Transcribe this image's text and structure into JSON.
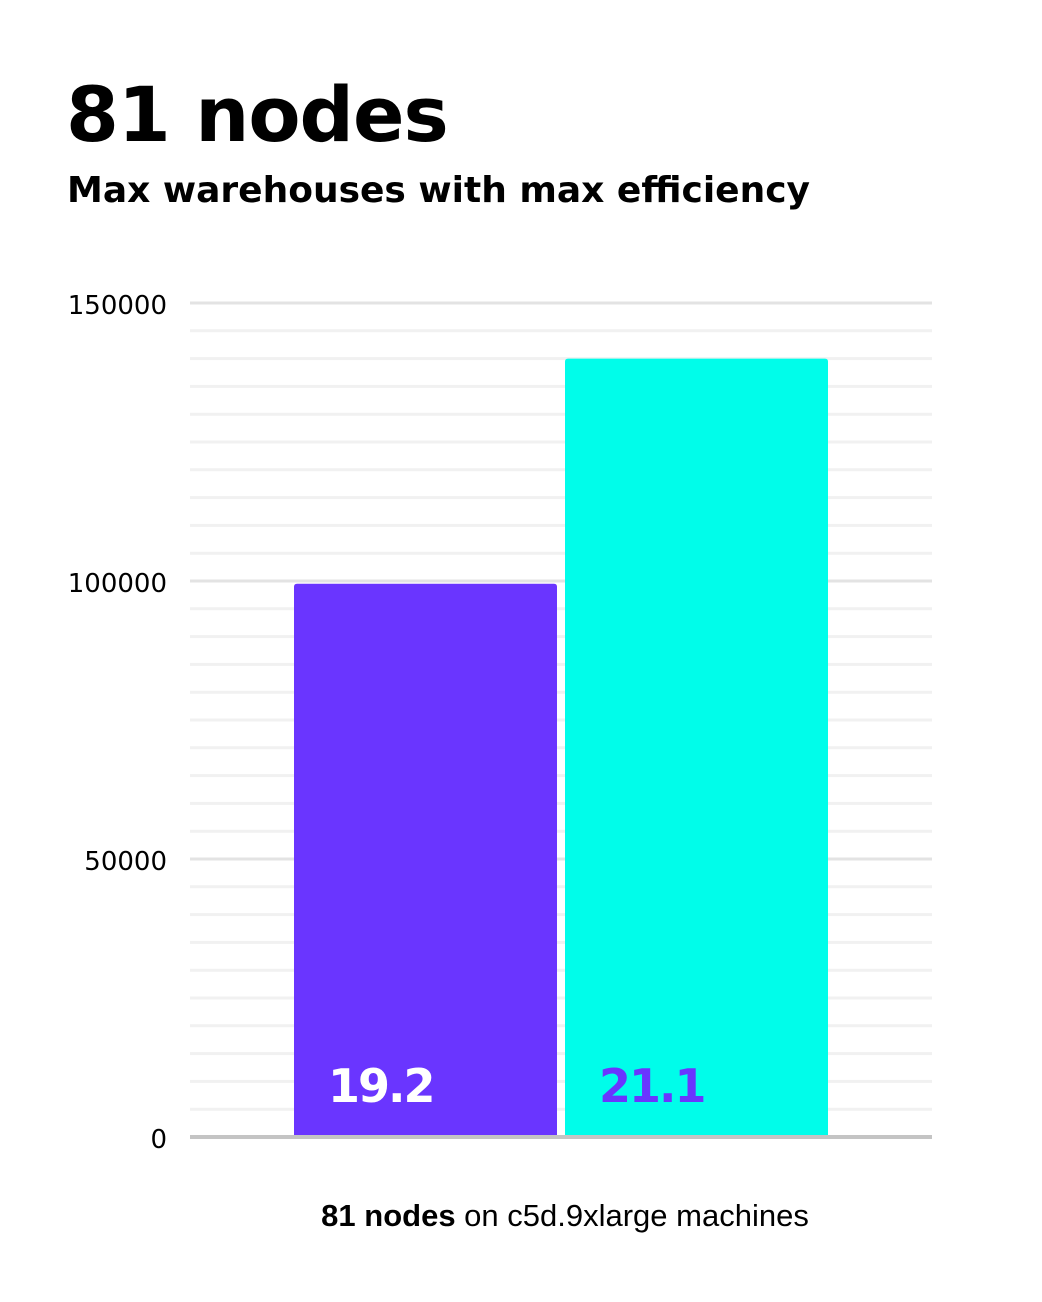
{
  "chart_data": {
    "type": "bar",
    "title": "81 nodes",
    "subtitle": "Max warehouses with max efficiency",
    "xlabel_bold": "81 nodes",
    "xlabel_rest": " on c5d.9xlarge machines",
    "ylabel": "",
    "ylim": [
      0,
      150000
    ],
    "yticks": [
      0,
      50000,
      100000,
      150000
    ],
    "minor_grid_step": 5000,
    "grid": true,
    "bars": [
      {
        "value": 99500,
        "label": "19.2",
        "color": "#6a35ff",
        "label_color": "#ffffff"
      },
      {
        "value": 140000,
        "label": "21.1",
        "color": "#00fdea",
        "label_color": "#6a35ff"
      }
    ]
  }
}
